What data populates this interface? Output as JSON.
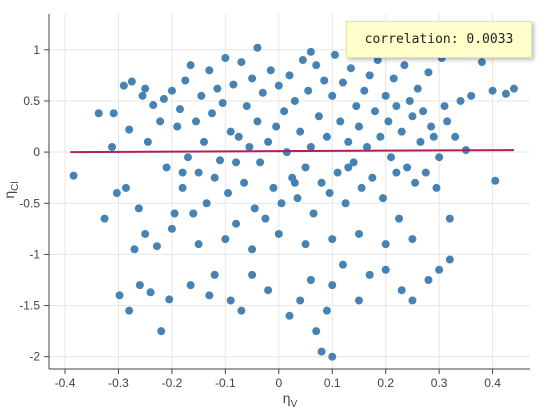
{
  "chart_data": {
    "type": "scatter",
    "xlabel": "η",
    "xlabel_sub": "V",
    "ylabel": "η",
    "ylabel_sub": "Cl",
    "xlim": [
      -0.43,
      0.47
    ],
    "ylim": [
      -2.12,
      1.35
    ],
    "xticks": [
      -0.4,
      -0.3,
      -0.2,
      -0.1,
      0,
      0.1,
      0.2,
      0.3,
      0.4
    ],
    "yticks": [
      -2,
      -1.5,
      -1,
      -0.5,
      0,
      0.5,
      1
    ],
    "grid": true,
    "regression_line": {
      "x": [
        -0.39,
        0.44
      ],
      "y": [
        0.0,
        0.02
      ],
      "color": "#b0205a"
    },
    "point_color": "#4682b4",
    "annotation": "correlation: 0.0033",
    "points_sampled": {
      "x": [
        -0.384,
        -0.337,
        -0.326,
        -0.312,
        -0.309,
        -0.303,
        -0.298,
        -0.29,
        -0.286,
        -0.28,
        -0.275,
        -0.262,
        -0.255,
        -0.25,
        -0.245,
        -0.24,
        -0.235,
        -0.228,
        -0.222,
        -0.215,
        -0.21,
        -0.205,
        -0.2,
        -0.195,
        -0.19,
        -0.185,
        -0.18,
        -0.175,
        -0.17,
        -0.165,
        -0.16,
        -0.155,
        -0.15,
        -0.145,
        -0.14,
        -0.135,
        -0.13,
        -0.125,
        -0.12,
        -0.115,
        -0.11,
        -0.105,
        -0.1,
        -0.095,
        -0.09,
        -0.085,
        -0.08,
        -0.075,
        -0.07,
        -0.065,
        -0.06,
        -0.055,
        -0.05,
        -0.045,
        -0.04,
        -0.035,
        -0.03,
        -0.025,
        -0.02,
        -0.015,
        -0.01,
        -0.005,
        0.0,
        0.005,
        0.01,
        0.015,
        0.02,
        0.025,
        0.03,
        0.035,
        0.04,
        0.045,
        0.05,
        0.055,
        0.06,
        0.065,
        0.07,
        0.075,
        0.08,
        0.085,
        0.09,
        0.095,
        0.1,
        0.105,
        0.11,
        0.115,
        0.12,
        0.125,
        0.13,
        0.135,
        0.14,
        0.145,
        0.15,
        0.155,
        0.16,
        0.165,
        0.17,
        0.175,
        0.18,
        0.185,
        0.19,
        0.195,
        0.2,
        0.205,
        0.21,
        0.215,
        0.22,
        0.225,
        0.23,
        0.235,
        0.24,
        0.245,
        0.25,
        0.255,
        0.26,
        0.265,
        0.27,
        0.275,
        0.28,
        0.285,
        0.29,
        0.295,
        0.3,
        0.305,
        0.31,
        0.315,
        0.32,
        0.33,
        0.34,
        0.35,
        0.36,
        0.38,
        0.4,
        0.405,
        0.425,
        0.44,
        -0.28,
        -0.27,
        -0.26,
        -0.22,
        -0.165,
        -0.13,
        -0.12,
        -0.09,
        -0.07,
        -0.05,
        -0.02,
        0.02,
        0.04,
        0.06,
        0.07,
        0.08,
        0.09,
        0.1,
        0.12,
        0.15,
        0.2,
        0.23,
        0.25,
        0.28,
        0.3,
        0.32,
        -0.25,
        -0.2,
        -0.15,
        -0.1,
        -0.05,
        0.0,
        0.05,
        0.1,
        0.15,
        0.2,
        0.25,
        -0.18,
        -0.08,
        0.03,
        0.13,
        0.22,
        -0.04,
        0.06,
        0.1,
        0.17
      ],
      "y": [
        -0.23,
        0.38,
        -0.65,
        0.05,
        0.38,
        -0.4,
        -1.4,
        0.65,
        -0.35,
        0.22,
        0.69,
        -0.55,
        0.55,
        0.62,
        0.1,
        -1.37,
        0.46,
        -0.92,
        0.3,
        0.52,
        -0.15,
        -1.44,
        0.6,
        -0.6,
        0.25,
        0.42,
        -0.35,
        0.7,
        -0.05,
        0.85,
        -0.6,
        0.3,
        -0.2,
        0.55,
        0.1,
        -0.5,
        0.8,
        0.38,
        -0.25,
        0.62,
        -0.08,
        0.48,
        0.92,
        -0.4,
        0.2,
        0.66,
        -0.7,
        0.15,
        0.88,
        -0.3,
        0.45,
        0.05,
        0.72,
        -0.55,
        0.3,
        -0.1,
        0.58,
        -0.65,
        0.1,
        0.8,
        -0.35,
        0.25,
        0.65,
        -0.5,
        0.4,
        0.0,
        0.75,
        -0.25,
        0.5,
        -0.45,
        0.2,
        0.9,
        -0.15,
        0.6,
        0.05,
        -0.6,
        0.85,
        0.35,
        -0.3,
        0.7,
        0.15,
        -0.4,
        0.55,
        0.95,
        -0.2,
        0.3,
        0.68,
        -0.5,
        0.1,
        0.82,
        -0.1,
        0.45,
        0.25,
        -0.35,
        0.6,
        0.05,
        0.75,
        -0.25,
        0.4,
        0.9,
        0.15,
        -0.45,
        0.55,
        0.3,
        -0.05,
        0.72,
        0.45,
        -0.65,
        0.2,
        0.85,
        -0.15,
        0.5,
        0.35,
        -0.3,
        0.62,
        0.1,
        0.4,
        -0.2,
        0.78,
        0.25,
        0.15,
        -0.35,
        -0.05,
        0.92,
        0.45,
        0.3,
        -0.65,
        0.15,
        0.5,
        0.02,
        0.55,
        0.88,
        0.6,
        -0.28,
        0.57,
        0.62,
        -1.55,
        -0.95,
        -1.3,
        -1.75,
        -1.3,
        -1.4,
        -1.2,
        -1.45,
        -1.55,
        -1.2,
        -1.35,
        -1.6,
        -1.45,
        -1.25,
        -1.75,
        -1.95,
        -1.55,
        -1.3,
        -1.1,
        -1.45,
        -1.15,
        -1.35,
        -1.45,
        -1.25,
        -1.15,
        -1.05,
        -0.8,
        -0.75,
        -0.9,
        -0.85,
        -0.95,
        -0.8,
        -0.9,
        -0.85,
        -0.8,
        -0.9,
        -0.85,
        -0.2,
        -0.1,
        -0.3,
        -0.15,
        -0.2,
        1.02,
        0.98,
        -2.0,
        -1.2
      ]
    }
  }
}
